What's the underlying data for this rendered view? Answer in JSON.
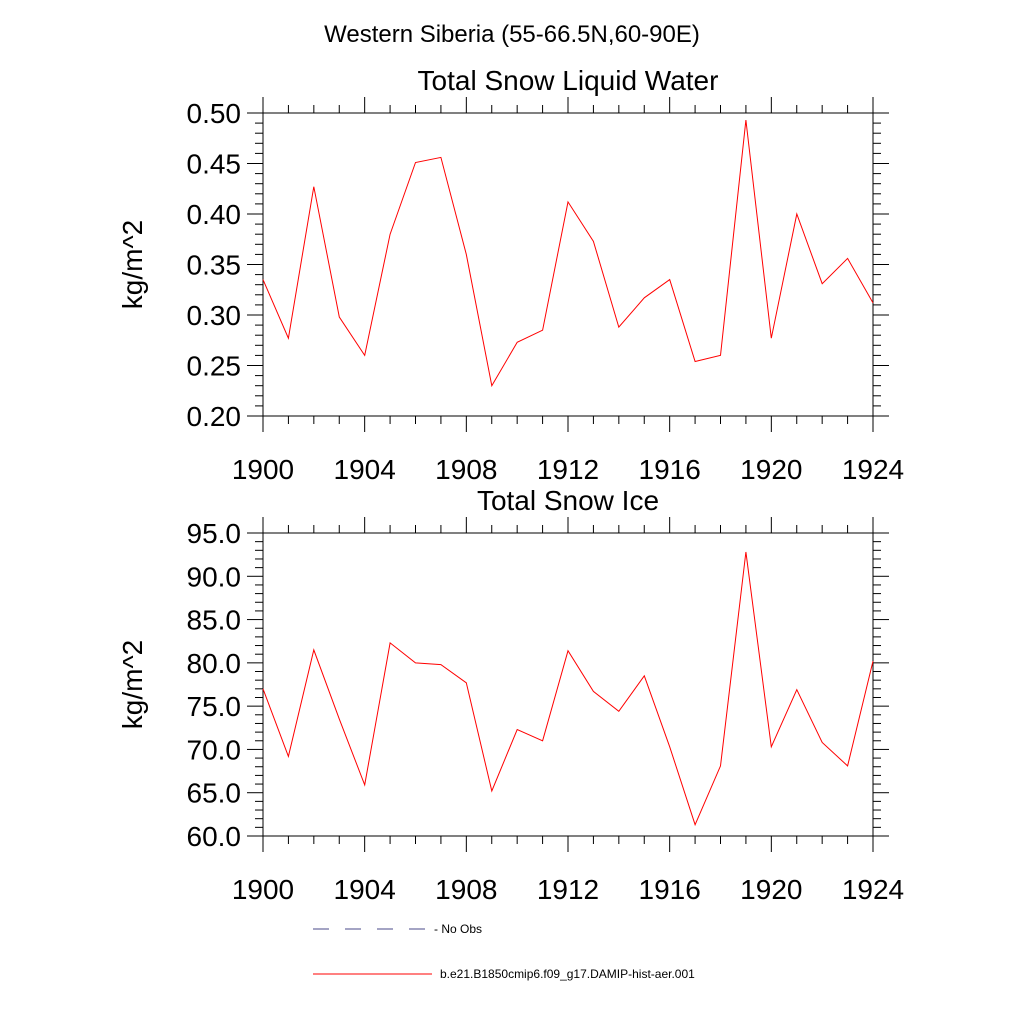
{
  "figure": {
    "title": "Western Siberia (55-66.5N,60-90E)"
  },
  "chart_data": [
    {
      "type": "line",
      "title": "Total Snow Liquid Water",
      "xlabel": "",
      "ylabel": "kg/m^2",
      "xlim": [
        1900,
        1924
      ],
      "ylim": [
        0.2,
        0.5
      ],
      "x_ticks": [
        "1900",
        "1904",
        "1908",
        "1912",
        "1916",
        "1920",
        "1924"
      ],
      "y_ticks": [
        "0.20",
        "0.25",
        "0.30",
        "0.35",
        "0.40",
        "0.45",
        "0.50"
      ],
      "x": [
        1900,
        1901,
        1902,
        1903,
        1904,
        1905,
        1906,
        1907,
        1908,
        1909,
        1910,
        1911,
        1912,
        1913,
        1914,
        1915,
        1916,
        1917,
        1918,
        1919,
        1920,
        1921,
        1922,
        1923,
        1924
      ],
      "series": [
        {
          "name": "b.e21.B1850cmip6.f09_g17.DAMIP-hist-aer.001",
          "color": "#ff0000",
          "values": [
            0.335,
            0.277,
            0.427,
            0.298,
            0.26,
            0.38,
            0.451,
            0.456,
            0.36,
            0.23,
            0.273,
            0.285,
            0.412,
            0.373,
            0.288,
            0.317,
            0.335,
            0.254,
            0.26,
            0.493,
            0.277,
            0.4,
            0.331,
            0.356,
            0.312
          ]
        }
      ],
      "grid": false
    },
    {
      "type": "line",
      "title": "Total Snow Ice",
      "xlabel": "",
      "ylabel": "kg/m^2",
      "xlim": [
        1900,
        1924
      ],
      "ylim": [
        60.0,
        95.0
      ],
      "x_ticks": [
        "1900",
        "1904",
        "1908",
        "1912",
        "1916",
        "1920",
        "1924"
      ],
      "y_ticks": [
        "60.0",
        "65.0",
        "70.0",
        "75.0",
        "80.0",
        "85.0",
        "90.0",
        "95.0"
      ],
      "x": [
        1900,
        1901,
        1902,
        1903,
        1904,
        1905,
        1906,
        1907,
        1908,
        1909,
        1910,
        1911,
        1912,
        1913,
        1914,
        1915,
        1916,
        1917,
        1918,
        1919,
        1920,
        1921,
        1922,
        1923,
        1924
      ],
      "series": [
        {
          "name": "b.e21.B1850cmip6.f09_g17.DAMIP-hist-aer.001",
          "color": "#ff0000",
          "values": [
            77.0,
            69.2,
            81.5,
            73.5,
            65.9,
            82.3,
            80.0,
            79.8,
            77.7,
            65.2,
            72.3,
            71.0,
            81.4,
            76.7,
            74.4,
            78.5,
            70.3,
            61.3,
            68.1,
            92.8,
            70.3,
            76.9,
            70.8,
            68.1,
            80.2
          ]
        }
      ],
      "grid": false
    }
  ],
  "legend": {
    "placement": "bottom",
    "items": [
      {
        "label": "- No Obs",
        "color": "#4a4a8a",
        "style": "dashed"
      },
      {
        "label": "b.e21.B1850cmip6.f09_g17.DAMIP-hist-aer.001",
        "color": "#ff0000",
        "style": "solid"
      }
    ]
  }
}
